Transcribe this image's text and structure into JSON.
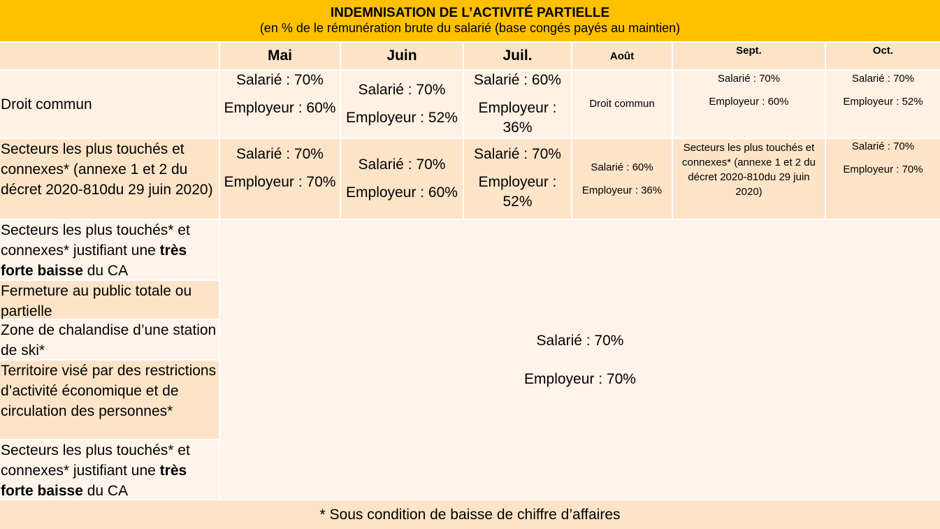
{
  "title": {
    "main": "INDEMNISATION DE L’ACTIVITÉ PARTIELLE",
    "sub": "(en % de le rémunération brute du salarié (base congés payés au maintien)"
  },
  "months": {
    "mai": "Mai",
    "juin": "Juin",
    "juil": "Juil.",
    "aout": "Août",
    "sept": "Sept.",
    "oct": "Oct."
  },
  "rows": {
    "droit_commun": {
      "label": "Droit commun",
      "mai": {
        "salarie": "Salarié : 70%",
        "employeur": "Employeur : 60%"
      },
      "juin": {
        "salarie": "Salarié : 70%",
        "employeur": "Employeur : 52%"
      },
      "juil": {
        "salarie": "Salarié : 60%",
        "employeur": "Employeur : 36%"
      },
      "aout": "Droit commun",
      "sept": {
        "salarie": "Salarié : 70%",
        "employeur": "Employeur : 60%"
      },
      "oct": {
        "salarie": "Salarié : 70%",
        "employeur": "Employeur : 52%"
      }
    },
    "secteurs": {
      "label": "Secteurs les plus touchés et connexes* (annexe 1 et 2 du décret 2020-810du 29 juin 2020)",
      "mai": {
        "salarie": "Salarié : 70%",
        "employeur": "Employeur : 70%"
      },
      "juin": {
        "salarie": "Salarié : 70%",
        "employeur": "Employeur : 60%"
      },
      "juil": {
        "salarie": "Salarié : 70%",
        "employeur": "Employeur : 52%"
      },
      "aout": {
        "salarie": "Salarié : 60%",
        "employeur": "Employeur : 36%"
      },
      "sept": "Secteurs les plus touchés et connexes* (annexe 1 et 2 du décret 2020-810du 29 juin 2020)",
      "oct": {
        "salarie": "Salarié : 70%",
        "employeur": "Employeur : 70%"
      }
    },
    "forte_baisse_1": {
      "pre": "Secteurs les plus touchés* et connexes* justifiant une ",
      "bold": "très forte baisse",
      "post": " du CA"
    },
    "fermeture": {
      "label": "Fermeture au public totale ou partielle"
    },
    "ski": {
      "label": "Zone de chalandise d’une station de ski*"
    },
    "territoire": {
      "label": "Territoire visé par des restrictions d’activité économique et de circulation des personnes*"
    },
    "forte_baisse_2": {
      "pre": "Secteurs les plus touchés* et connexes* justifiant une ",
      "bold": "très forte baisse",
      "post": " du CA"
    }
  },
  "merged": {
    "salarie": "Salarié : 70%",
    "employeur": "Employeur : 70%"
  },
  "footer": "* Sous condition de baisse de chiffre d’affaires",
  "colors": {
    "title_bg": "#ffc000",
    "peach": "#fde4c8",
    "light": "#fff1e4"
  }
}
